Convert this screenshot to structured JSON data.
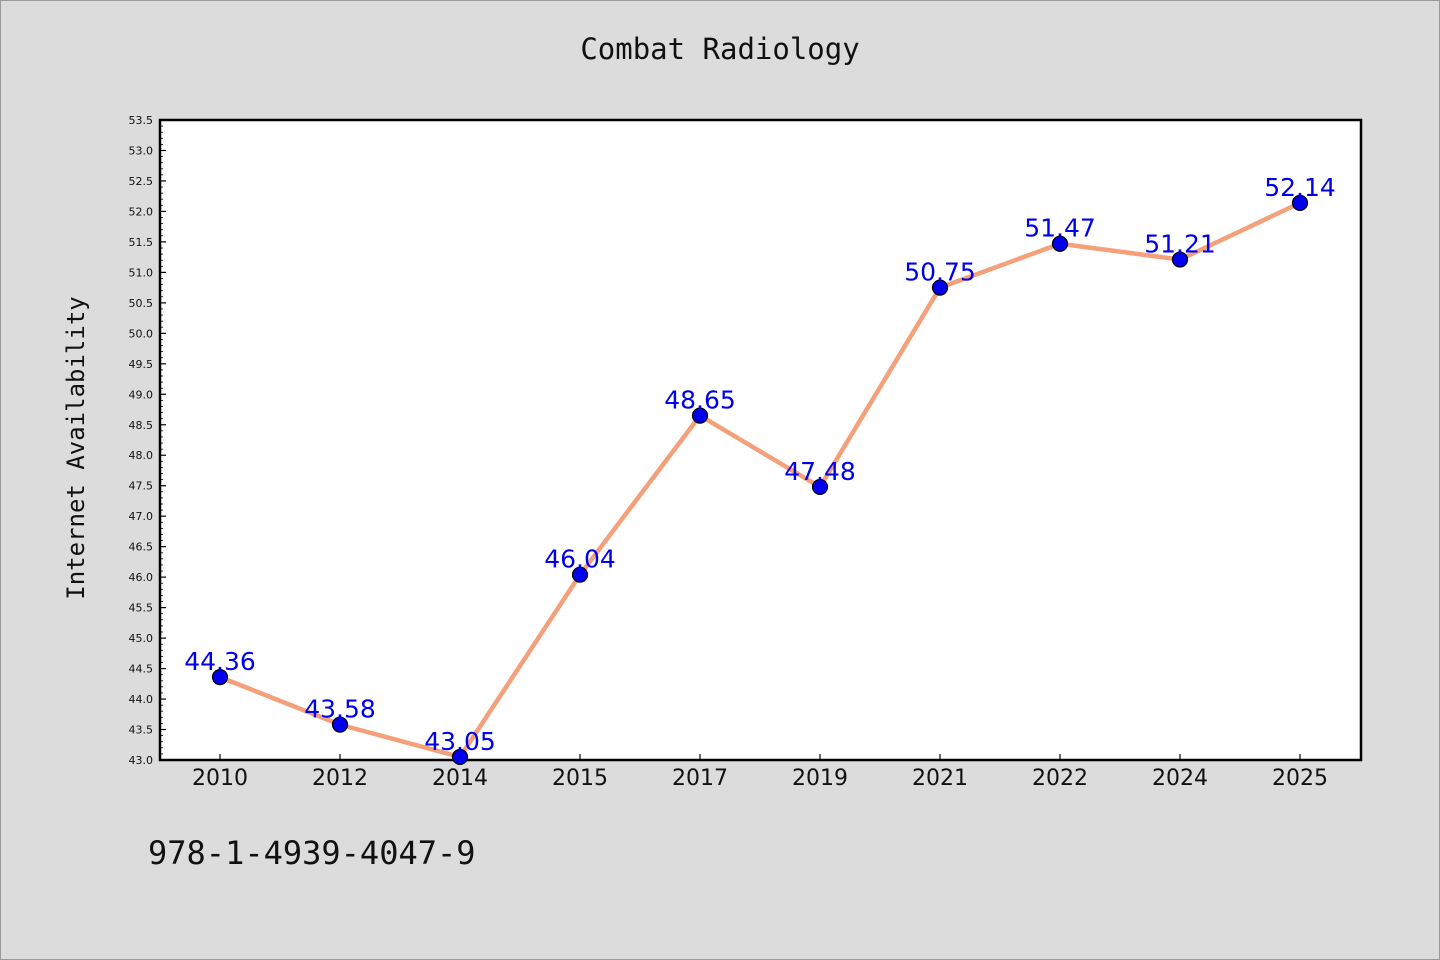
{
  "chart_data": {
    "type": "line",
    "title": "Combat Radiology",
    "xlabel": "",
    "ylabel": "Internet Availability",
    "categories": [
      "2010",
      "2012",
      "2014",
      "2015",
      "2017",
      "2019",
      "2021",
      "2022",
      "2024",
      "2025"
    ],
    "series": [
      {
        "values": [
          44.36,
          43.58,
          43.05,
          46.04,
          48.65,
          47.48,
          50.75,
          51.47,
          51.21,
          52.14
        ],
        "data_labels": [
          "44.36",
          "43.58",
          "43.05",
          "46.04",
          "48.65",
          "47.48",
          "50.75",
          "51.47",
          "51.21",
          "52.14"
        ]
      }
    ],
    "ylim": [
      43.0,
      53.5
    ],
    "yticks": [
      "43.0",
      "43.5",
      "44.0",
      "44.5",
      "45.0",
      "45.5",
      "46.0",
      "46.5",
      "47.0",
      "47.5",
      "48.0",
      "48.5",
      "49.0",
      "49.5",
      "50.0",
      "50.5",
      "51.0",
      "51.5",
      "52.0",
      "52.5",
      "53.0",
      "53.5"
    ],
    "grid": false,
    "line_color": "#f4a07a",
    "marker_color": "#0000ee",
    "label_color": "#0000ee"
  },
  "footer": {
    "isbn": "978-1-4939-4047-9"
  }
}
